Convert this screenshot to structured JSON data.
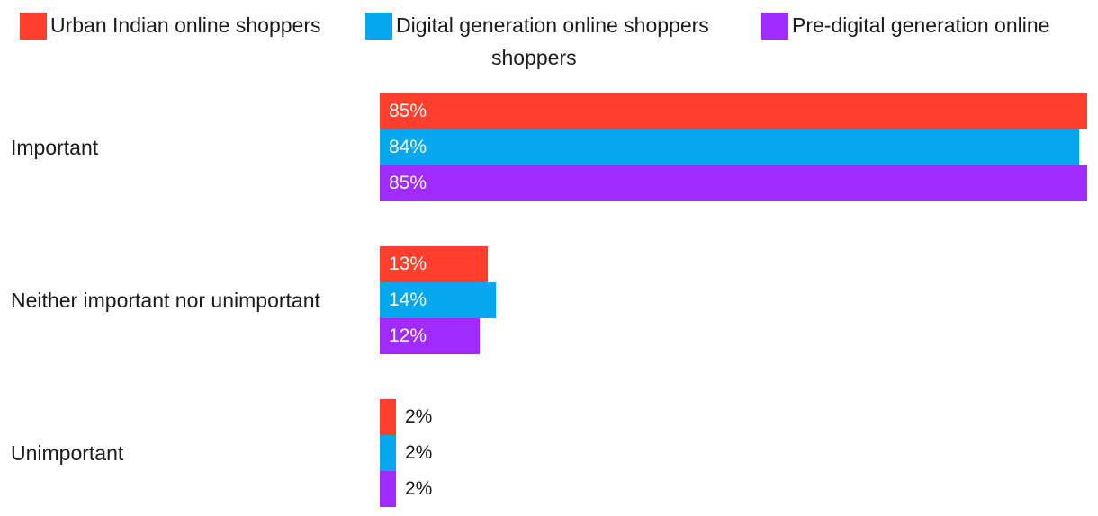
{
  "chart_data": {
    "type": "bar",
    "orientation": "horizontal",
    "categories": [
      "Important",
      "Neither important nor unimportant",
      "Unimportant"
    ],
    "series": [
      {
        "name": "Urban Indian online shoppers",
        "color": "#ff3f2e",
        "values": [
          85,
          13,
          2
        ],
        "labels": [
          "85%",
          "13%",
          "2%"
        ]
      },
      {
        "name": "Digital generation online shoppers",
        "color": "#07a7ef",
        "values": [
          84,
          14,
          2
        ],
        "labels": [
          "84%",
          "14%",
          "2%"
        ]
      },
      {
        "name": "Pre-digital generation online shoppers",
        "color": "#9f2bff",
        "values": [
          85,
          12,
          2
        ],
        "labels": [
          "85%",
          "12%",
          "2%"
        ]
      }
    ],
    "xlim": [
      0,
      85
    ],
    "unit": "%",
    "legend_position": "top",
    "grid": false
  }
}
